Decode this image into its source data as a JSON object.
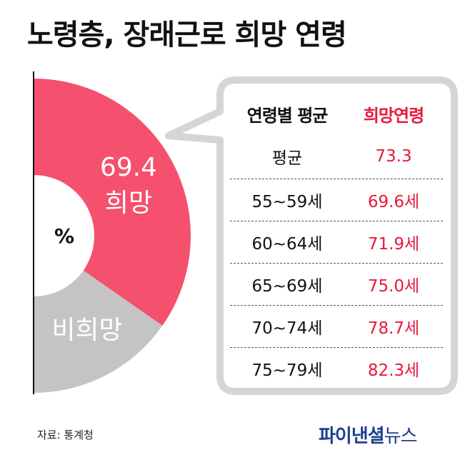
{
  "title": "노령층, 장래근로 희망 연령",
  "colors": {
    "hope": "#f5506e",
    "nohope": "#c4c4c4",
    "accent_red": "#e8193c",
    "logo_blue": "#1c3f8f",
    "callout_border": "#d5d5d5"
  },
  "chart_data": {
    "type": "pie",
    "center_label": "%",
    "slices": [
      {
        "name": "희망",
        "value": 69.4,
        "color": "#f5506e"
      },
      {
        "name": "비희망",
        "value": 30.6,
        "color": "#c4c4c4"
      }
    ]
  },
  "table": {
    "header": {
      "col1": "연령별 평균",
      "col2": "희망연령"
    },
    "rows": [
      {
        "group": "평균",
        "age": "73.3"
      },
      {
        "group": "55~59세",
        "age": "69.6세"
      },
      {
        "group": "60~64세",
        "age": "71.9세"
      },
      {
        "group": "65~69세",
        "age": "75.0세"
      },
      {
        "group": "70~74세",
        "age": "78.7세"
      },
      {
        "group": "75~79세",
        "age": "82.3세"
      }
    ]
  },
  "source": "자료: 통계청",
  "logo": {
    "main": "파이낸셜",
    "sub": "뉴스"
  }
}
